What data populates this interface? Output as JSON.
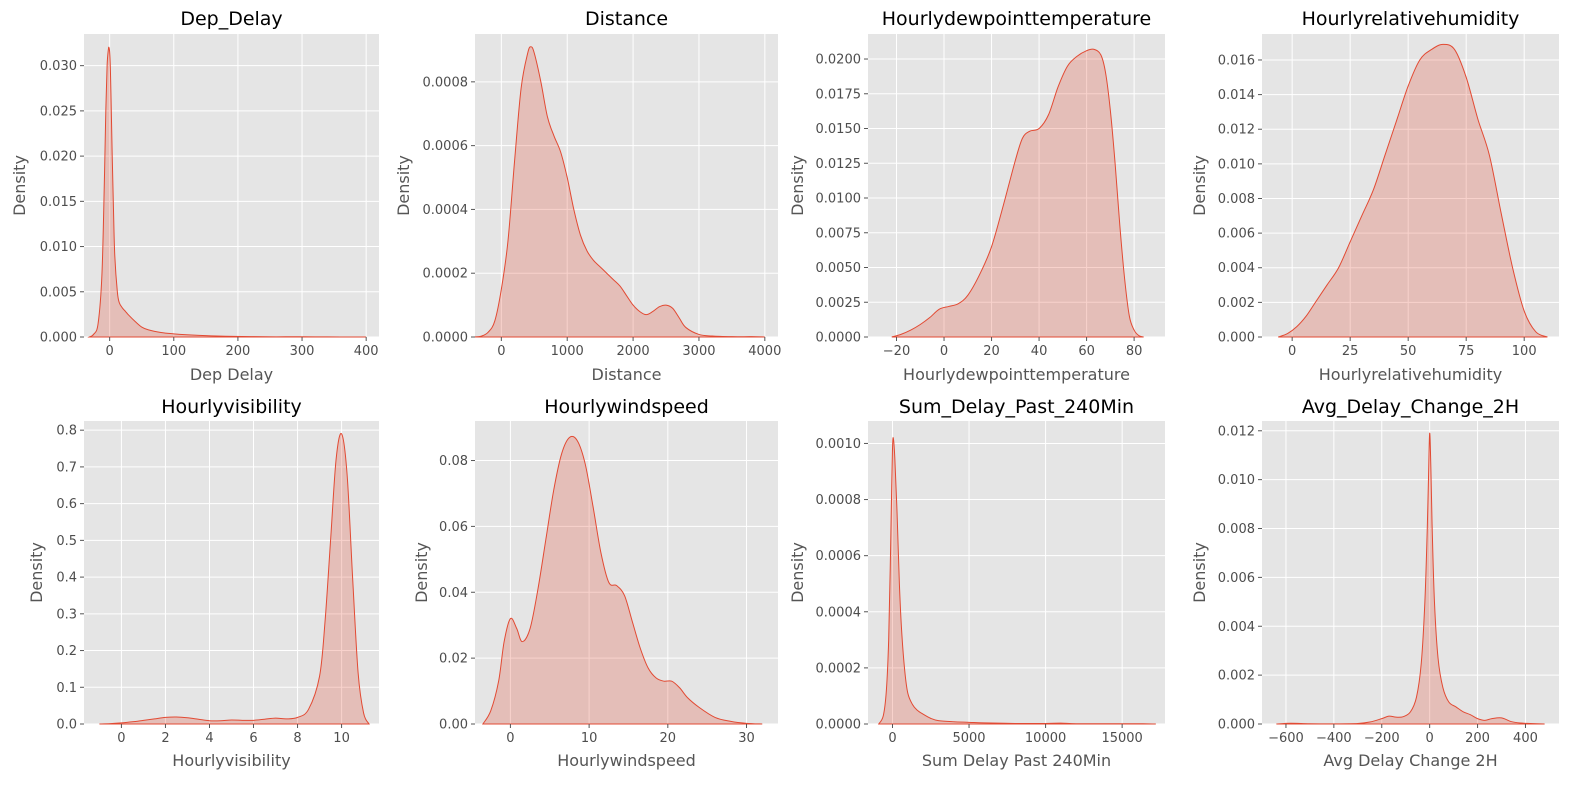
{
  "theme": {
    "fill_color": "#e24a33",
    "fill_opacity": 0.25,
    "line_color": "#e24a33",
    "panel_bg": "#e5e5e5",
    "grid_color": "#ffffff"
  },
  "chart_data": [
    {
      "type": "area",
      "title": "Dep_Delay",
      "xlabel": "Dep Delay",
      "ylabel": "Density",
      "xlim": [
        -40,
        420
      ],
      "ylim": [
        0,
        0.0335
      ],
      "xticks": [
        0,
        100,
        200,
        300,
        400
      ],
      "xtick_labels": [
        "0",
        "100",
        "200",
        "300",
        "400"
      ],
      "yticks": [
        0,
        0.005,
        0.01,
        0.015,
        0.02,
        0.025,
        0.03
      ],
      "ytick_labels": [
        "0.000",
        "0.005",
        "0.010",
        "0.015",
        "0.020",
        "0.025",
        "0.030"
      ],
      "grid": true,
      "x": [
        -32,
        -25,
        -18,
        -12,
        -8,
        -6,
        -4,
        -2,
        -1,
        0,
        1,
        2,
        4,
        6,
        8,
        12,
        15,
        20,
        25,
        30,
        40,
        50,
        60,
        80,
        100,
        120,
        150,
        180,
        220,
        260,
        300,
        330,
        360,
        400
      ],
      "y": [
        0,
        0.0003,
        0.0015,
        0.007,
        0.018,
        0.025,
        0.03,
        0.0318,
        0.032,
        0.0315,
        0.03,
        0.027,
        0.02,
        0.014,
        0.009,
        0.005,
        0.0038,
        0.0032,
        0.0028,
        0.0024,
        0.0017,
        0.0011,
        0.0008,
        0.0005,
        0.00035,
        0.00025,
        0.00015,
        8e-05,
        4e-05,
        2e-05,
        3e-05,
        1e-05,
        5e-06,
        0
      ]
    },
    {
      "type": "area",
      "title": "Distance",
      "xlabel": "Distance",
      "ylabel": "Density",
      "xlim": [
        -400,
        4200
      ],
      "ylim": [
        0,
        0.00095
      ],
      "xticks": [
        0,
        1000,
        2000,
        3000,
        4000
      ],
      "xtick_labels": [
        "0",
        "1000",
        "2000",
        "3000",
        "4000"
      ],
      "yticks": [
        0,
        0.0002,
        0.0004,
        0.0006,
        0.0008
      ],
      "ytick_labels": [
        "0.0000",
        "0.0002",
        "0.0004",
        "0.0006",
        "0.0008"
      ],
      "grid": true,
      "x": [
        -420,
        -300,
        -200,
        -100,
        0,
        100,
        200,
        300,
        400,
        450,
        500,
        600,
        700,
        800,
        900,
        1000,
        1100,
        1200,
        1300,
        1400,
        1500,
        1600,
        1700,
        1800,
        1900,
        2000,
        2100,
        2200,
        2300,
        2400,
        2500,
        2600,
        2700,
        2800,
        3000,
        3200,
        3500,
        3800,
        4000
      ],
      "y": [
        0,
        3e-06,
        1.5e-05,
        5e-05,
        0.00015,
        0.0003,
        0.00055,
        0.00078,
        0.00089,
        0.00091,
        0.00089,
        0.0008,
        0.00069,
        0.00063,
        0.00058,
        0.0005,
        0.0004,
        0.00032,
        0.00027,
        0.00024,
        0.00022,
        0.0002,
        0.00018,
        0.00016,
        0.00013,
        0.0001,
        8e-05,
        7e-05,
        8e-05,
        9.5e-05,
        0.0001,
        9e-05,
        6e-05,
        3e-05,
        8e-06,
        3e-06,
        1e-06,
        1e-06,
        0
      ]
    },
    {
      "type": "area",
      "title": "Hourlydewpointtemperature",
      "xlabel": "Hourlydewpointtemperature",
      "ylabel": "Density",
      "xlim": [
        -32,
        93
      ],
      "ylim": [
        0,
        0.0218
      ],
      "xticks": [
        -20,
        0,
        20,
        40,
        60,
        80
      ],
      "xtick_labels": [
        "−20",
        "0",
        "20",
        "40",
        "60",
        "80"
      ],
      "yticks": [
        0,
        0.0025,
        0.005,
        0.0075,
        0.01,
        0.0125,
        0.015,
        0.0175,
        0.02
      ],
      "ytick_labels": [
        "0.0000",
        "0.0025",
        "0.0050",
        "0.0075",
        "0.0100",
        "0.0125",
        "0.0150",
        "0.0175",
        "0.0200"
      ],
      "grid": true,
      "x": [
        -22,
        -18,
        -14,
        -10,
        -6,
        -2,
        2,
        6,
        10,
        15,
        20,
        25,
        30,
        33,
        36,
        40,
        44,
        48,
        52,
        56,
        60,
        63,
        66,
        68,
        70,
        72,
        74,
        76,
        78,
        80,
        82,
        84
      ],
      "y": [
        0,
        0.0002,
        0.0005,
        0.0009,
        0.0014,
        0.002,
        0.0022,
        0.0024,
        0.003,
        0.0045,
        0.0065,
        0.0095,
        0.0127,
        0.0143,
        0.0148,
        0.015,
        0.016,
        0.018,
        0.0195,
        0.0202,
        0.0206,
        0.0207,
        0.0203,
        0.019,
        0.0163,
        0.0125,
        0.008,
        0.0042,
        0.0015,
        0.0005,
        0.0001,
        0
      ]
    },
    {
      "type": "area",
      "title": "Hourlyrelativehumidity",
      "xlabel": "Hourlyrelativehumidity",
      "ylabel": "Density",
      "xlim": [
        -13,
        115
      ],
      "ylim": [
        0,
        0.0175
      ],
      "xticks": [
        0,
        25,
        50,
        75,
        100
      ],
      "xtick_labels": [
        "0",
        "25",
        "50",
        "75",
        "100"
      ],
      "yticks": [
        0,
        0.002,
        0.004,
        0.006,
        0.008,
        0.01,
        0.012,
        0.014,
        0.016
      ],
      "ytick_labels": [
        "0.000",
        "0.002",
        "0.004",
        "0.006",
        "0.008",
        "0.010",
        "0.012",
        "0.014",
        "0.016"
      ],
      "grid": true,
      "x": [
        -6,
        -2,
        2,
        6,
        10,
        15,
        20,
        25,
        30,
        35,
        40,
        45,
        50,
        55,
        60,
        65,
        70,
        75,
        80,
        85,
        90,
        95,
        100,
        105,
        110
      ],
      "y": [
        0,
        0.0002,
        0.0006,
        0.0012,
        0.002,
        0.003,
        0.004,
        0.0055,
        0.007,
        0.0085,
        0.0105,
        0.0125,
        0.0145,
        0.016,
        0.0166,
        0.0169,
        0.0166,
        0.015,
        0.0126,
        0.0105,
        0.0072,
        0.004,
        0.0015,
        0.0003,
        0
      ]
    },
    {
      "type": "area",
      "title": "Hourlyvisibility",
      "xlabel": "Hourlyvisibility",
      "ylabel": "Density",
      "xlim": [
        -1.7,
        11.7
      ],
      "ylim": [
        0,
        0.825
      ],
      "xticks": [
        0,
        2,
        4,
        6,
        8,
        10
      ],
      "xtick_labels": [
        "0",
        "2",
        "4",
        "6",
        "8",
        "10"
      ],
      "yticks": [
        0,
        0.1,
        0.2,
        0.3,
        0.4,
        0.5,
        0.6,
        0.7,
        0.8
      ],
      "ytick_labels": [
        "0.0",
        "0.1",
        "0.2",
        "0.3",
        "0.4",
        "0.5",
        "0.6",
        "0.7",
        "0.8"
      ],
      "grid": true,
      "x": [
        -1,
        -0.5,
        0,
        0.5,
        1,
        1.5,
        2,
        2.5,
        3,
        3.5,
        4,
        4.5,
        5,
        5.5,
        6,
        6.5,
        7,
        7.5,
        8,
        8.5,
        9,
        9.25,
        9.5,
        9.75,
        10,
        10.25,
        10.5,
        10.75,
        11,
        11.25
      ],
      "y": [
        0,
        0.001,
        0.003,
        0.006,
        0.01,
        0.014,
        0.018,
        0.019,
        0.017,
        0.013,
        0.009,
        0.009,
        0.011,
        0.01,
        0.01,
        0.013,
        0.016,
        0.014,
        0.018,
        0.04,
        0.13,
        0.28,
        0.5,
        0.72,
        0.79,
        0.68,
        0.4,
        0.14,
        0.03,
        0
      ]
    },
    {
      "type": "area",
      "title": "Hourlywindspeed",
      "xlabel": "Hourlywindspeed",
      "ylabel": "Density",
      "xlim": [
        -4.5,
        34
      ],
      "ylim": [
        0,
        0.092
      ],
      "xticks": [
        0,
        10,
        20,
        30
      ],
      "xtick_labels": [
        "0",
        "10",
        "20",
        "30"
      ],
      "yticks": [
        0,
        0.02,
        0.04,
        0.06,
        0.08
      ],
      "ytick_labels": [
        "0.00",
        "0.02",
        "0.04",
        "0.06",
        "0.08"
      ],
      "grid": true,
      "x": [
        -3.5,
        -2.5,
        -1.5,
        -0.8,
        0,
        0.8,
        1.5,
        2.5,
        3.5,
        4.5,
        5.5,
        6.5,
        7.5,
        8.5,
        9.5,
        10.5,
        11.5,
        12.5,
        13.5,
        14.5,
        15.5,
        16.5,
        17.5,
        18.5,
        19.5,
        20.5,
        21.5,
        22.5,
        24,
        26,
        28,
        30,
        32
      ],
      "y": [
        0,
        0.004,
        0.013,
        0.025,
        0.032,
        0.029,
        0.025,
        0.029,
        0.041,
        0.056,
        0.071,
        0.082,
        0.087,
        0.086,
        0.079,
        0.066,
        0.052,
        0.043,
        0.042,
        0.039,
        0.031,
        0.023,
        0.017,
        0.014,
        0.013,
        0.013,
        0.011,
        0.008,
        0.005,
        0.002,
        0.0008,
        0.0002,
        0
      ]
    },
    {
      "type": "area",
      "title": "Sum_Delay_Past_240Min",
      "xlabel": "Sum Delay Past 240Min",
      "ylabel": "Density",
      "xlim": [
        -1600,
        17800
      ],
      "ylim": [
        0,
        0.00108
      ],
      "xticks": [
        0,
        5000,
        10000,
        15000
      ],
      "xtick_labels": [
        "0",
        "5000",
        "10000",
        "15000"
      ],
      "yticks": [
        0,
        0.0002,
        0.0004,
        0.0006,
        0.0008,
        0.001
      ],
      "ytick_labels": [
        "0.0000",
        "0.0002",
        "0.0004",
        "0.0006",
        "0.0008",
        "0.0010"
      ],
      "grid": true,
      "x": [
        -900,
        -600,
        -400,
        -250,
        -150,
        -50,
        0,
        50,
        150,
        300,
        450,
        600,
        800,
        1000,
        1300,
        1600,
        2000,
        2500,
        3000,
        4000,
        5000,
        6000,
        8000,
        10000,
        11000,
        12000,
        14000,
        16000,
        17200
      ],
      "y": [
        0,
        3e-05,
        0.00012,
        0.0003,
        0.00055,
        0.00085,
        0.00098,
        0.00102,
        0.00095,
        0.00075,
        0.0005,
        0.00033,
        0.00019,
        0.00011,
        7e-05,
        5e-05,
        3.5e-05,
        2e-05,
        1.2e-05,
        8e-06,
        6e-06,
        4e-06,
        2e-06,
        2e-06,
        3e-06,
        1e-06,
        1e-06,
        1e-06,
        0
      ]
    },
    {
      "type": "area",
      "title": "Avg_Delay_Change_2H",
      "xlabel": "Avg Delay Change 2H",
      "ylabel": "Density",
      "xlim": [
        -700,
        540
      ],
      "ylim": [
        0,
        0.0124
      ],
      "xticks": [
        -600,
        -400,
        -200,
        0,
        200,
        400
      ],
      "xtick_labels": [
        "−600",
        "−400",
        "−200",
        "0",
        "200",
        "400"
      ],
      "yticks": [
        0,
        0.002,
        0.004,
        0.006,
        0.008,
        0.01,
        0.012
      ],
      "ytick_labels": [
        "0.000",
        "0.002",
        "0.004",
        "0.006",
        "0.008",
        "0.010",
        "0.012"
      ],
      "grid": true,
      "x": [
        -640,
        -580,
        -500,
        -400,
        -300,
        -250,
        -200,
        -170,
        -140,
        -110,
        -80,
        -55,
        -35,
        -20,
        -10,
        -5,
        0,
        5,
        10,
        20,
        35,
        55,
        80,
        110,
        140,
        170,
        200,
        230,
        260,
        300,
        340,
        380,
        420,
        480
      ],
      "y": [
        0,
        3e-05,
        1e-05,
        5e-06,
        2e-05,
        8e-05,
        0.00022,
        0.00032,
        0.00028,
        0.0003,
        0.0005,
        0.0011,
        0.0025,
        0.005,
        0.008,
        0.01,
        0.0119,
        0.0105,
        0.0082,
        0.005,
        0.0027,
        0.0015,
        0.0009,
        0.0007,
        0.0005,
        0.00038,
        0.00022,
        0.00015,
        0.00022,
        0.00025,
        0.0001,
        4e-05,
        2e-05,
        0
      ]
    }
  ]
}
